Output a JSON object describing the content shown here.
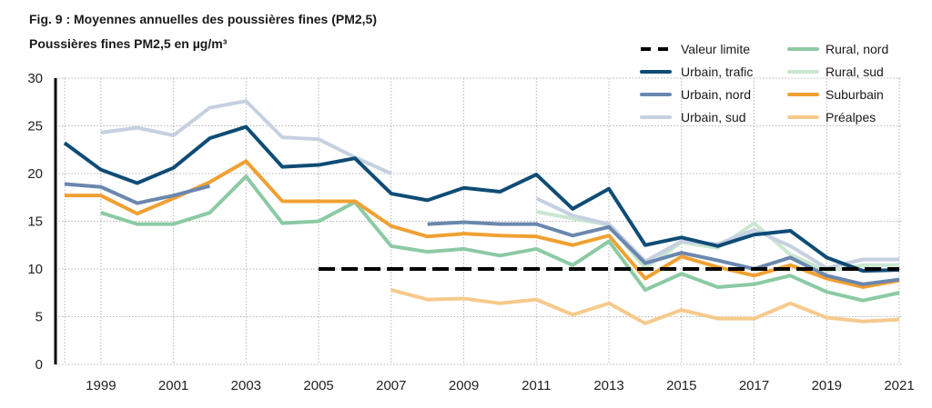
{
  "header": {
    "title": "Fig. 9 : Moyennes annuelles des poussières fines (PM2,5)",
    "subtitle": "Poussières fines PM2,5 en µg/m³"
  },
  "chart_data": {
    "type": "line",
    "title": "Fig. 9 : Moyennes annuelles des poussières fines (PM2,5)",
    "ylabel": "Poussières fines PM2,5 en µg/m³",
    "xlabel": "",
    "xlim": [
      1998,
      2021
    ],
    "ylim": [
      0,
      30
    ],
    "x_ticks": [
      1999,
      2001,
      2003,
      2005,
      2007,
      2009,
      2011,
      2013,
      2015,
      2017,
      2019,
      2021
    ],
    "y_ticks": [
      0,
      5,
      10,
      15,
      20,
      25,
      30
    ],
    "grid": true,
    "legend_position": "top-right",
    "x": [
      1998,
      1999,
      2000,
      2001,
      2002,
      2003,
      2004,
      2005,
      2006,
      2007,
      2008,
      2009,
      2010,
      2011,
      2012,
      2013,
      2014,
      2015,
      2016,
      2017,
      2018,
      2019,
      2020,
      2021
    ],
    "series": [
      {
        "name": "Valeur limite",
        "color": "#000000",
        "dashed": true,
        "values": [
          null,
          null,
          null,
          null,
          null,
          null,
          null,
          10,
          10,
          10,
          10,
          10,
          10,
          10,
          10,
          10,
          10,
          10,
          10,
          10,
          10,
          10,
          10,
          10
        ]
      },
      {
        "name": "Urbain, trafic",
        "color": "#0f4c75",
        "values": [
          23.2,
          20.4,
          19.0,
          20.6,
          23.7,
          24.9,
          20.7,
          20.9,
          21.6,
          17.9,
          17.2,
          18.5,
          18.1,
          19.9,
          16.3,
          18.4,
          12.5,
          13.3,
          12.4,
          13.6,
          14.0,
          11.2,
          9.8,
          9.9
        ]
      },
      {
        "name": "Urbain, nord",
        "color": "#6a87ae",
        "values": [
          18.9,
          18.6,
          16.9,
          17.7,
          18.7,
          null,
          null,
          null,
          null,
          null,
          14.7,
          14.9,
          14.7,
          14.7,
          13.5,
          14.4,
          10.6,
          11.7,
          10.9,
          10.0,
          11.2,
          9.3,
          8.4,
          8.9
        ]
      },
      {
        "name": "Urbain, sud",
        "color": "#c6d0e1",
        "values": [
          null,
          24.3,
          24.8,
          24.0,
          26.9,
          27.6,
          23.8,
          23.6,
          21.7,
          20.0,
          null,
          null,
          null,
          17.4,
          15.6,
          14.7,
          10.8,
          12.9,
          12.6,
          14.1,
          12.4,
          10.1,
          11.0,
          11.0
        ]
      },
      {
        "name": "Rural, nord",
        "color": "#8ccaa4",
        "values": [
          null,
          15.9,
          14.7,
          14.7,
          15.9,
          19.7,
          14.8,
          15.0,
          17.0,
          12.4,
          11.8,
          12.1,
          11.4,
          12.1,
          10.4,
          12.9,
          7.8,
          9.5,
          8.1,
          8.4,
          9.3,
          7.6,
          6.7,
          7.5
        ]
      },
      {
        "name": "Rural, sud",
        "color": "#c9e7d1",
        "values": [
          null,
          null,
          null,
          null,
          null,
          null,
          null,
          null,
          null,
          null,
          null,
          null,
          null,
          16.0,
          15.3,
          14.6,
          10.1,
          12.8,
          12.2,
          14.8,
          11.5,
          9.8,
          10.4,
          10.4
        ]
      },
      {
        "name": "Suburbain",
        "color": "#f0a032",
        "values": [
          17.7,
          17.7,
          15.8,
          17.4,
          19.1,
          21.3,
          17.1,
          17.1,
          17.1,
          14.5,
          13.4,
          13.7,
          13.5,
          13.4,
          12.5,
          13.5,
          9.0,
          11.3,
          10.2,
          9.3,
          10.4,
          9.0,
          8.1,
          8.8
        ]
      },
      {
        "name": "Préalpes",
        "color": "#f6ca8c",
        "values": [
          null,
          null,
          null,
          null,
          null,
          null,
          null,
          null,
          null,
          7.8,
          6.8,
          6.9,
          6.4,
          6.8,
          5.2,
          6.4,
          4.3,
          5.7,
          4.8,
          4.8,
          6.4,
          4.9,
          4.5,
          4.7
        ]
      }
    ]
  },
  "legend": [
    {
      "label": "Valeur limite",
      "color": "#000000",
      "dashed": true
    },
    {
      "label": "Urbain, trafic",
      "color": "#0f4c75"
    },
    {
      "label": "Urbain, nord",
      "color": "#6a87ae"
    },
    {
      "label": "Urbain, sud",
      "color": "#c6d0e1"
    },
    {
      "label": "Rural, nord",
      "color": "#8ccaa4"
    },
    {
      "label": "Rural, sud",
      "color": "#c9e7d1"
    },
    {
      "label": "Suburbain",
      "color": "#f0a032"
    },
    {
      "label": "Préalpes",
      "color": "#f6ca8c"
    }
  ]
}
